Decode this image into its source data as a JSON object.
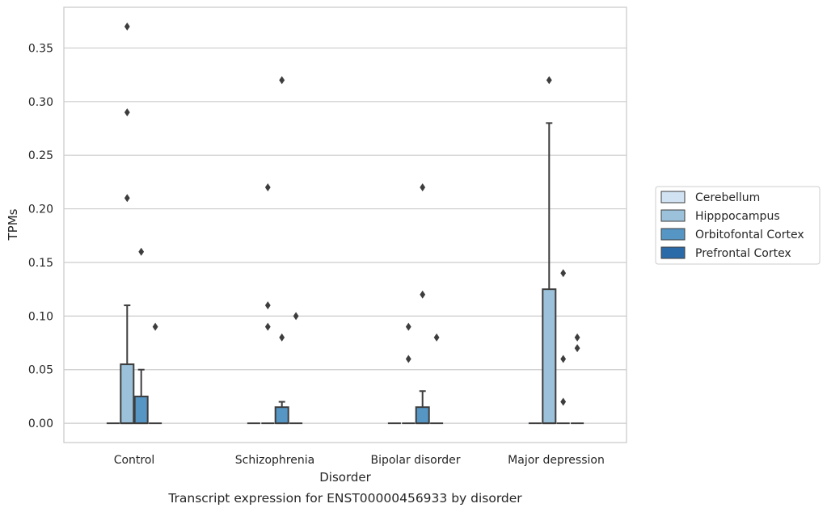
{
  "chart_data": {
    "type": "box",
    "caption": "Transcript expression for ENST00000456933 by disorder",
    "xlabel": "Disorder",
    "ylabel": "TPMs",
    "ylim": [
      -0.018,
      0.388
    ],
    "yticks": [
      0.0,
      0.05,
      0.1,
      0.15,
      0.2,
      0.25,
      0.3,
      0.35
    ],
    "ytick_labels": [
      "0.00",
      "0.05",
      "0.10",
      "0.15",
      "0.20",
      "0.25",
      "0.30",
      "0.35"
    ],
    "grid": "horizontal",
    "legend_position": "right-center",
    "categories": [
      "Control",
      "Schizophrenia",
      "Bipolar disorder",
      "Major depression"
    ],
    "series": [
      {
        "name": "Cerebellum",
        "color": "#d1e2f2",
        "boxes": [
          {
            "q1": 0,
            "median": 0,
            "q3": 0,
            "whisker_low": 0,
            "whisker_high": 0,
            "outliers": []
          },
          {
            "q1": 0,
            "median": 0,
            "q3": 0,
            "whisker_low": 0,
            "whisker_high": 0,
            "outliers": []
          },
          {
            "q1": 0,
            "median": 0,
            "q3": 0,
            "whisker_low": 0,
            "whisker_high": 0,
            "outliers": []
          },
          {
            "q1": 0,
            "median": 0,
            "q3": 0,
            "whisker_low": 0,
            "whisker_high": 0,
            "outliers": []
          }
        ]
      },
      {
        "name": "Hipppocampus",
        "color": "#9bc2da",
        "boxes": [
          {
            "q1": 0,
            "median": 0,
            "q3": 0.055,
            "whisker_low": 0,
            "whisker_high": 0.11,
            "outliers": [
              0.21,
              0.29,
              0.37
            ]
          },
          {
            "q1": 0,
            "median": 0,
            "q3": 0,
            "whisker_low": 0,
            "whisker_high": 0,
            "outliers": [
              0.09,
              0.11,
              0.22
            ]
          },
          {
            "q1": 0,
            "median": 0,
            "q3": 0,
            "whisker_low": 0,
            "whisker_high": 0,
            "outliers": [
              0.06,
              0.09
            ]
          },
          {
            "q1": 0,
            "median": 0,
            "q3": 0.125,
            "whisker_low": 0,
            "whisker_high": 0.28,
            "outliers": [
              0.32
            ]
          }
        ]
      },
      {
        "name": "Orbitofontal Cortex",
        "color": "#5596c5",
        "boxes": [
          {
            "q1": 0,
            "median": 0,
            "q3": 0.025,
            "whisker_low": 0,
            "whisker_high": 0.05,
            "outliers": [
              0.16
            ]
          },
          {
            "q1": 0,
            "median": 0,
            "q3": 0.015,
            "whisker_low": 0,
            "whisker_high": 0.02,
            "outliers": [
              0.08,
              0.32
            ]
          },
          {
            "q1": 0,
            "median": 0,
            "q3": 0.015,
            "whisker_low": 0,
            "whisker_high": 0.03,
            "outliers": [
              0.12,
              0.22
            ]
          },
          {
            "q1": 0,
            "median": 0,
            "q3": 0,
            "whisker_low": 0,
            "whisker_high": 0,
            "outliers": [
              0.02,
              0.06,
              0.14
            ]
          }
        ]
      },
      {
        "name": "Prefrontal Cortex",
        "color": "#2b6aa8",
        "boxes": [
          {
            "q1": 0,
            "median": 0,
            "q3": 0,
            "whisker_low": 0,
            "whisker_high": 0,
            "outliers": [
              0.09
            ]
          },
          {
            "q1": 0,
            "median": 0,
            "q3": 0,
            "whisker_low": 0,
            "whisker_high": 0,
            "outliers": [
              0.1
            ]
          },
          {
            "q1": 0,
            "median": 0,
            "q3": 0,
            "whisker_low": 0,
            "whisker_high": 0,
            "outliers": [
              0.08
            ]
          },
          {
            "q1": 0,
            "median": 0,
            "q3": 0,
            "whisker_low": 0,
            "whisker_high": 0,
            "outliers": [
              0.07,
              0.08
            ]
          }
        ]
      }
    ]
  }
}
